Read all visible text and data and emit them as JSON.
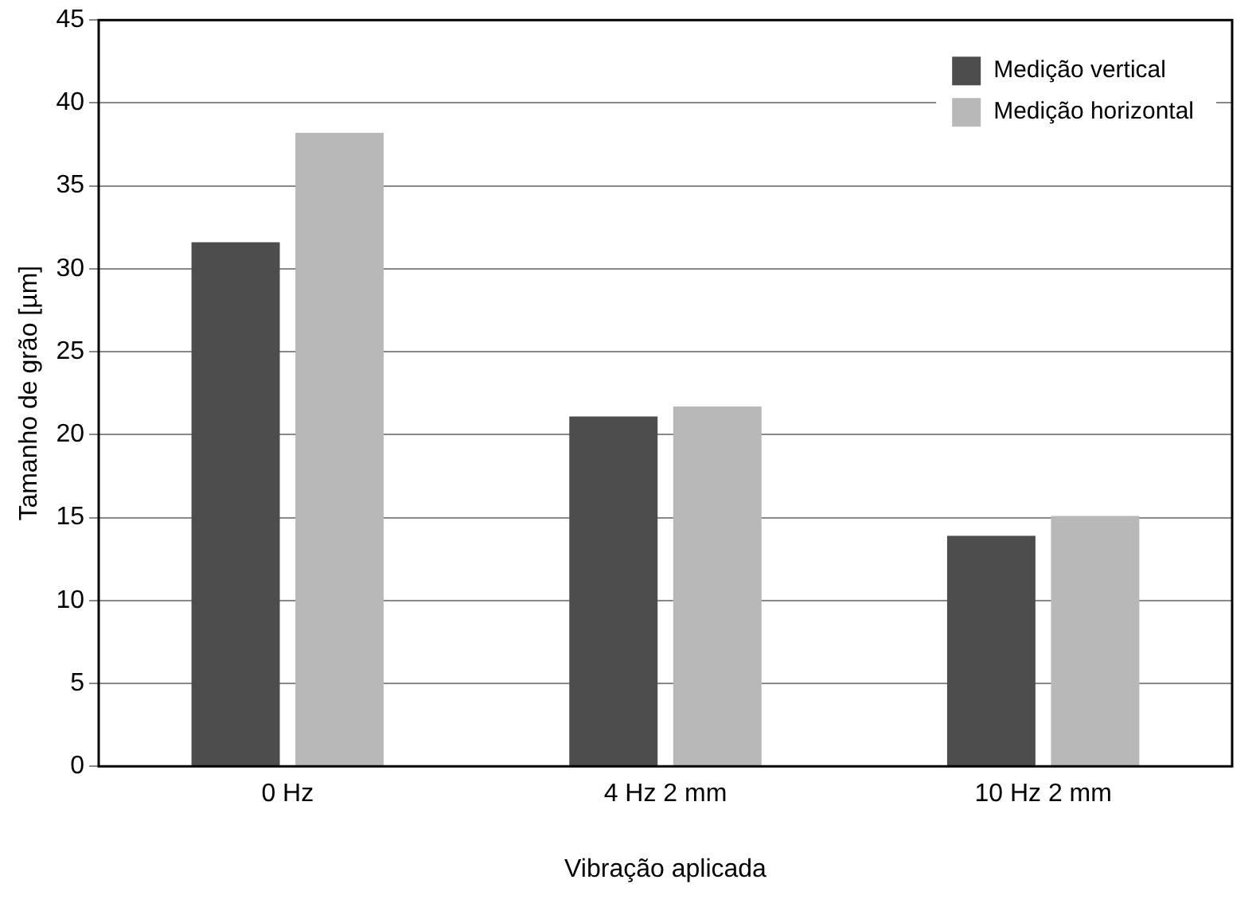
{
  "chart_data": {
    "type": "bar",
    "xlabel": "Vibração aplicada",
    "ylabel": "Tamanho de grão [µm]",
    "categories": [
      "0 Hz",
      "4 Hz 2 mm",
      "10 Hz 2 mm"
    ],
    "series": [
      {
        "name": "Medição vertical",
        "color": "#4d4d4d",
        "values": [
          31.6,
          21.1,
          13.9
        ]
      },
      {
        "name": "Medição horizontal",
        "color": "#b8b8b8",
        "values": [
          38.2,
          21.7,
          15.1
        ]
      }
    ],
    "ylim": [
      0,
      45
    ],
    "yticks": [
      0,
      5,
      10,
      15,
      20,
      25,
      30,
      35,
      40,
      45
    ],
    "grid": "y",
    "legend": "top right"
  }
}
